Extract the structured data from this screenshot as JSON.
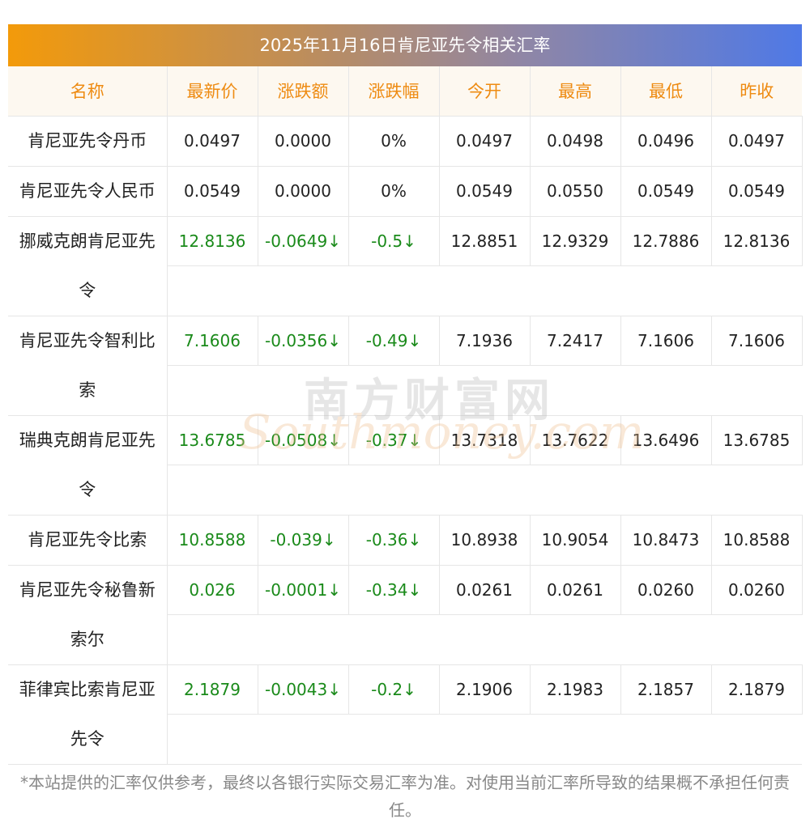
{
  "title": "2025年11月16日肯尼亚先令相关汇率",
  "headers": [
    "名称",
    "最新价",
    "涨跌额",
    "涨跌幅",
    "今开",
    "最高",
    "最低",
    "昨收"
  ],
  "rows": [
    {
      "name": "肯尼亚先令丹币",
      "latest": "0.0497",
      "change": "0.0000",
      "pct": "0%",
      "open": "0.0497",
      "high": "0.0498",
      "low": "0.0496",
      "prev": "0.0497",
      "down": false
    },
    {
      "name": "肯尼亚先令人民币",
      "latest": "0.0549",
      "change": "0.0000",
      "pct": "0%",
      "open": "0.0549",
      "high": "0.0550",
      "low": "0.0549",
      "prev": "0.0549",
      "down": false
    },
    {
      "name": "挪威克朗肯尼亚先令",
      "latest": "12.8136",
      "change": "-0.0649↓",
      "pct": "-0.5↓",
      "open": "12.8851",
      "high": "12.9329",
      "low": "12.7886",
      "prev": "12.8136",
      "down": true
    },
    {
      "name": "肯尼亚先令智利比索",
      "latest": "7.1606",
      "change": "-0.0356↓",
      "pct": "-0.49↓",
      "open": "7.1936",
      "high": "7.2417",
      "low": "7.1606",
      "prev": "7.1606",
      "down": true
    },
    {
      "name": "瑞典克朗肯尼亚先令",
      "latest": "13.6785",
      "change": "-0.0508↓",
      "pct": "-0.37↓",
      "open": "13.7318",
      "high": "13.7622",
      "low": "13.6496",
      "prev": "13.6785",
      "down": true
    },
    {
      "name": "肯尼亚先令比索",
      "latest": "10.8588",
      "change": "-0.039↓",
      "pct": "-0.36↓",
      "open": "10.8938",
      "high": "10.9054",
      "low": "10.8473",
      "prev": "10.8588",
      "down": true
    },
    {
      "name": "肯尼亚先令秘鲁新索尔",
      "latest": "0.026",
      "change": "-0.0001↓",
      "pct": "-0.34↓",
      "open": "0.0261",
      "high": "0.0261",
      "low": "0.0260",
      "prev": "0.0260",
      "down": true
    },
    {
      "name": "菲律宾比索肯尼亚先令",
      "latest": "2.1879",
      "change": "-0.0043↓",
      "pct": "-0.2↓",
      "open": "2.1906",
      "high": "2.1983",
      "low": "2.1857",
      "prev": "2.1879",
      "down": true
    }
  ],
  "footer": "*本站提供的汇率仅供参考，最终以各银行实际交易汇率为准。对使用当前汇率所导致的结果概不承担任何责任。",
  "watermark": {
    "cn": "南方财富网",
    "en": "Southmoney.com"
  },
  "colors": {
    "header_text": "#ee8b12",
    "down": "#1a8a1a",
    "title_start": "#f39a0a",
    "title_end": "#4f79e6"
  }
}
